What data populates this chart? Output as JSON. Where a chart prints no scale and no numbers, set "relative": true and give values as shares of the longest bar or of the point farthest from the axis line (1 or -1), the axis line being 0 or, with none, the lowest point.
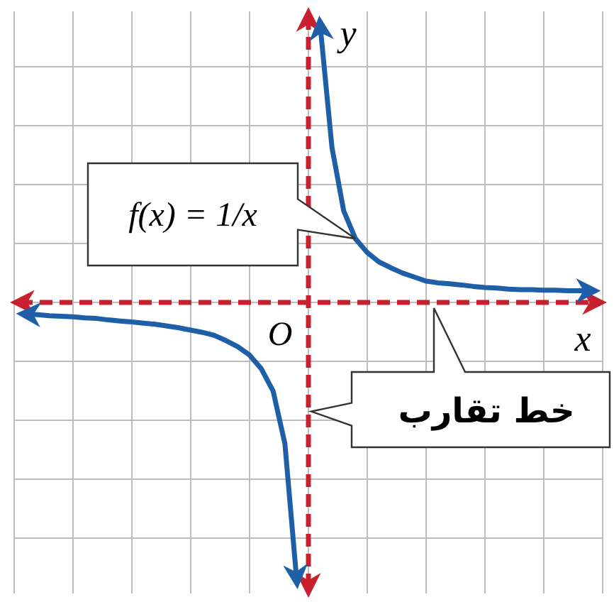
{
  "chart_data": {
    "type": "line",
    "relative": true,
    "xlabel": "x",
    "ylabel": "y",
    "categories": [
      null,
      null,
      null,
      null,
      null,
      null,
      null,
      null,
      null,
      null,
      null,
      null,
      null,
      null,
      null,
      null,
      null,
      null,
      null,
      null,
      null,
      null,
      null,
      null,
      null,
      null,
      null,
      null,
      null,
      null,
      null,
      null,
      null,
      null,
      null,
      null,
      null,
      null,
      null,
      null,
      null,
      null,
      null,
      null,
      null,
      null,
      null,
      null,
      null,
      null,
      null
    ],
    "grid": true,
    "legend": false,
    "marker": "none",
    "line_style": "solid",
    "series": [
      {
        "name": "f(x) = 1/x",
        "color": "#1f5fa8",
        "values": [
          null,
          null,
          null,
          null,
          null,
          null,
          null,
          null,
          null,
          null,
          null,
          null,
          null,
          null,
          null,
          null,
          null,
          null,
          null,
          null,
          null,
          null,
          null,
          null,
          null,
          null,
          1,
          0.56,
          0.33,
          0.23,
          0.18,
          0.146,
          0.125,
          0.106,
          0.092,
          0.077,
          0.071,
          0.067,
          0.063,
          0.058,
          0.054,
          0.052,
          0.048,
          0.046,
          0.046,
          0.044,
          0.044,
          0.042,
          0.042,
          0.042,
          null
        ]
      },
      {
        "color": "#1f5fa8",
        "values": [
          null,
          -0.042,
          -0.044,
          -0.048,
          -0.05,
          -0.052,
          -0.056,
          -0.058,
          -0.063,
          -0.067,
          -0.071,
          -0.075,
          -0.079,
          -0.085,
          -0.092,
          -0.1,
          -0.108,
          -0.119,
          -0.138,
          -0.16,
          -0.19,
          -0.24,
          -0.32,
          -0.51,
          -1,
          null,
          null,
          null,
          null,
          null,
          null,
          null,
          null,
          null,
          null,
          null,
          null,
          null,
          null,
          null,
          null,
          null,
          null,
          null,
          null,
          null,
          null,
          null,
          null,
          null,
          null
        ]
      }
    ],
    "ref_lines": [
      {
        "axis": "y",
        "value": 0,
        "color": "#c8202f",
        "line_style": "dashed"
      }
    ],
    "annotations": [
      "O",
      "خط تقارب"
    ]
  }
}
